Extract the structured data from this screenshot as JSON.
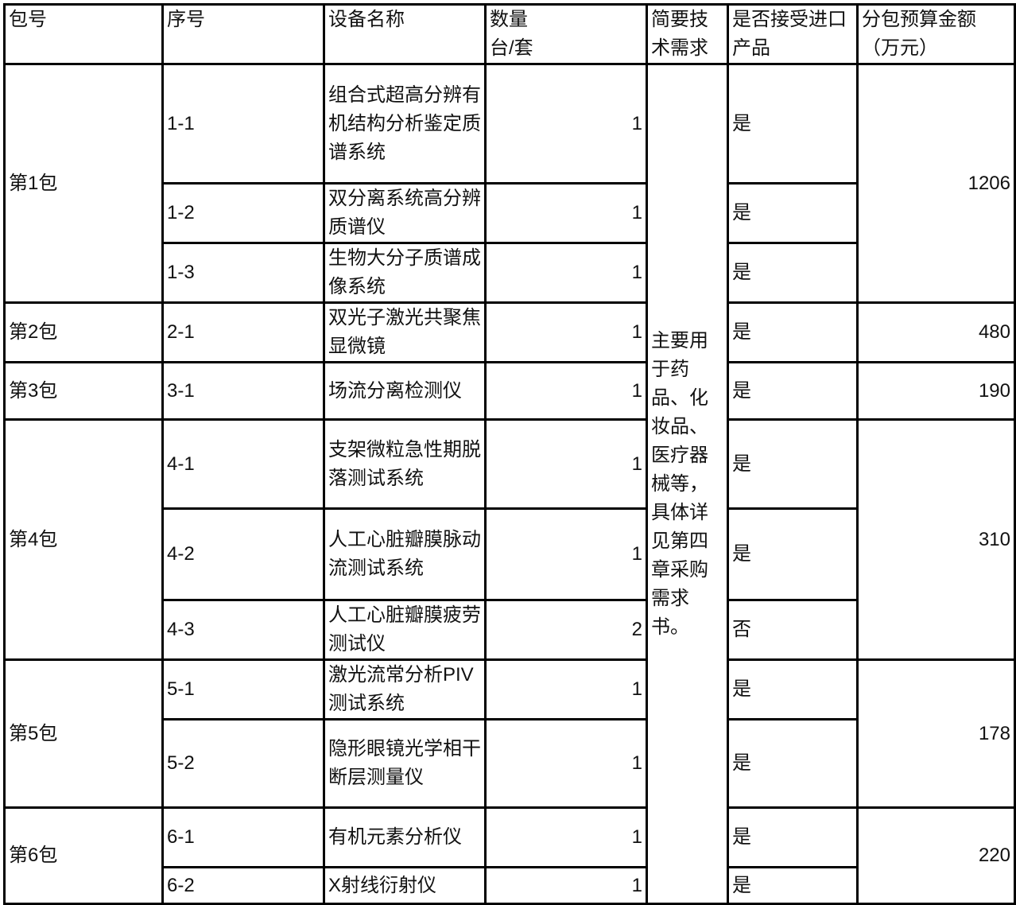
{
  "headers": [
    "包号",
    "序号",
    "设备名称",
    "数量\n台/套",
    "简要技术需求",
    "是否接受进口产品",
    "分包预算金额（万元）"
  ],
  "tech_requirement": "主要用于药品、化妆品、医疗器械等，具体详见第四章采购需求书。",
  "packages": [
    {
      "name": "第1包",
      "budget": "1206",
      "items": [
        {
          "no": "1-1",
          "device": "组合式超高分辨有机结构分析鉴定质谱系统",
          "qty": "1",
          "import": "是"
        },
        {
          "no": "1-2",
          "device": "双分离系统高分辨质谱仪",
          "qty": "1",
          "import": "是"
        },
        {
          "no": "1-3",
          "device": "生物大分子质谱成像系统",
          "qty": "1",
          "import": "是"
        }
      ]
    },
    {
      "name": "第2包",
      "budget": "480",
      "items": [
        {
          "no": "2-1",
          "device": "双光子激光共聚焦显微镜",
          "qty": "1",
          "import": "是"
        }
      ]
    },
    {
      "name": "第3包",
      "budget": "190",
      "items": [
        {
          "no": "3-1",
          "device": "场流分离检测仪",
          "qty": "1",
          "import": "是"
        }
      ]
    },
    {
      "name": "第4包",
      "budget": "310",
      "items": [
        {
          "no": "4-1",
          "device": "支架微粒急性期脱落测试系统",
          "qty": "1",
          "import": "是"
        },
        {
          "no": "4-2",
          "device": "人工心脏瓣膜脉动流测试系统",
          "qty": "1",
          "import": "是"
        },
        {
          "no": "4-3",
          "device": "人工心脏瓣膜疲劳测试仪",
          "qty": "2",
          "import": "否"
        }
      ]
    },
    {
      "name": "第5包",
      "budget": "178",
      "items": [
        {
          "no": "5-1",
          "device": "激光流常分析PIV测试系统",
          "qty": "1",
          "import": "是"
        },
        {
          "no": "5-2",
          "device": "隐形眼镜光学相干断层测量仪",
          "qty": "1",
          "import": "是"
        }
      ]
    },
    {
      "name": "第6包",
      "budget": "220",
      "items": [
        {
          "no": "6-1",
          "device": "有机元素分析仪",
          "qty": "1",
          "import": "是"
        },
        {
          "no": "6-2",
          "device": "X射线衍射仪",
          "qty": "1",
          "import": "是"
        }
      ]
    }
  ]
}
